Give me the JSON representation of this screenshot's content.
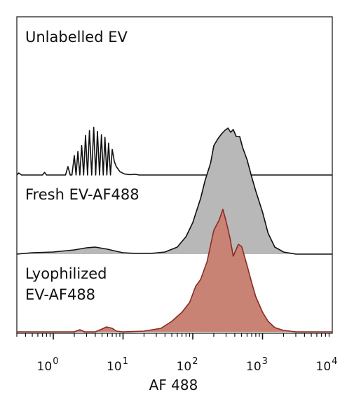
{
  "chart_data": {
    "type": "area",
    "subtype": "staggered histogram overlay (flow cytometry)",
    "xlabel": "AF 488",
    "xscale": "log",
    "xlim": [
      0.3,
      10000
    ],
    "xticks": [
      {
        "base": "10",
        "exp": "0"
      },
      {
        "base": "10",
        "exp": "1"
      },
      {
        "base": "10",
        "exp": "2"
      },
      {
        "base": "10",
        "exp": "3"
      },
      {
        "base": "10",
        "exp": "4"
      }
    ],
    "grid": false,
    "colors": {
      "axis": "#111111",
      "line": "#111111",
      "shaded_fill": "#b8b8b8",
      "lyophilized_fill": "#c98375",
      "lyophilized_line": "#8a2b22"
    },
    "series": [
      {
        "name": "Unlabelled EV",
        "filled": false,
        "x": [
          0.3,
          0.32,
          0.35,
          0.38,
          0.55,
          0.7,
          0.75,
          0.8,
          0.85,
          1.1,
          1.5,
          1.62,
          1.75,
          1.85,
          2.0,
          2.12,
          2.25,
          2.4,
          2.55,
          2.72,
          2.9,
          3.1,
          3.3,
          3.55,
          3.8,
          4.05,
          4.3,
          4.6,
          4.9,
          5.2,
          5.5,
          5.85,
          6.2,
          6.6,
          7.0,
          7.5,
          8.0,
          9.0,
          10.5,
          12.5,
          15,
          17,
          20,
          30,
          10000
        ],
        "y": [
          0,
          6,
          0,
          0,
          0,
          0,
          8,
          0,
          0,
          0,
          0,
          25,
          0,
          0,
          58,
          0,
          70,
          0,
          88,
          0,
          118,
          0,
          132,
          0,
          142,
          0,
          130,
          0,
          120,
          0,
          112,
          0,
          95,
          0,
          76,
          40,
          25,
          10,
          3,
          1,
          2,
          0,
          0,
          0,
          0
        ]
      },
      {
        "name": "Fresh EV-AF488",
        "filled": true,
        "x": [
          0.3,
          0.5,
          1.0,
          2.0,
          3.0,
          4.0,
          6.0,
          8.0,
          10,
          15,
          25,
          40,
          60,
          80,
          100,
          130,
          150,
          180,
          200,
          230,
          260,
          290,
          320,
          350,
          380,
          420,
          470,
          520,
          600,
          700,
          800,
          1000,
          1200,
          1500,
          2000,
          3000,
          10000
        ],
        "y": [
          0,
          2,
          3,
          6,
          9,
          10,
          7,
          4,
          2,
          1,
          1,
          3,
          10,
          25,
          45,
          80,
          105,
          130,
          155,
          165,
          172,
          177,
          180,
          174,
          178,
          168,
          168,
          152,
          135,
          110,
          90,
          60,
          30,
          10,
          3,
          0,
          0
        ]
      },
      {
        "name": "Lyophilized EV-AF488",
        "filled": true,
        "x": [
          0.3,
          1.0,
          2.0,
          2.4,
          2.8,
          4.0,
          5.0,
          5.8,
          7.0,
          8.0,
          10,
          20,
          35,
          50,
          70,
          90,
          110,
          130,
          160,
          200,
          240,
          270,
          300,
          340,
          380,
          420,
          450,
          500,
          550,
          600,
          700,
          800,
          1000,
          1200,
          1500,
          2000,
          3000,
          10000
        ],
        "y": [
          0,
          0,
          0,
          3,
          0,
          0,
          4,
          7,
          5,
          1,
          0,
          1,
          5,
          15,
          28,
          42,
          65,
          75,
          100,
          145,
          160,
          175,
          158,
          135,
          108,
          118,
          125,
          122,
          108,
          95,
          70,
          50,
          28,
          15,
          6,
          2,
          0,
          0
        ]
      }
    ]
  }
}
